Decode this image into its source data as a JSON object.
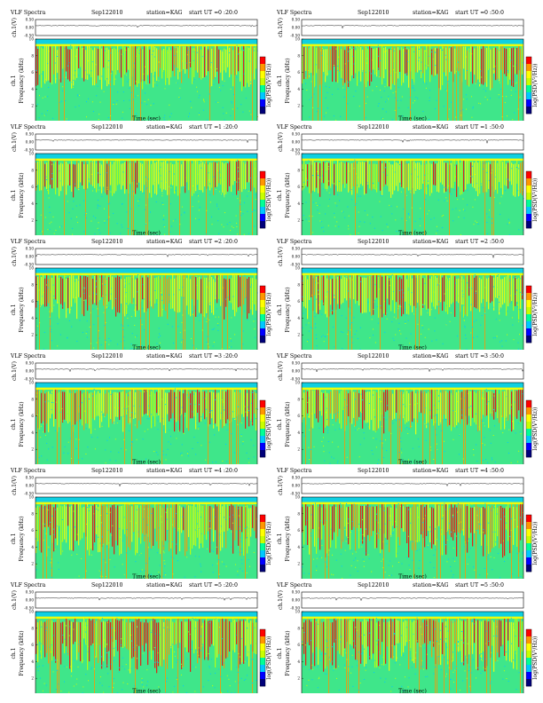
{
  "header": {
    "instrument": "VLF Spectra",
    "date": "Sep122010",
    "station": "station=KAG",
    "start_prefix": "start  UT ="
  },
  "axes": {
    "trace_label": "ch.1(V)",
    "spec_label_outer": "ch.1",
    "spec_label": "Frequency  (kHz)",
    "xlabel": "Time  (sec)",
    "colorbar_label": "log(PSD(V²/Hz))"
  },
  "colors": {
    "scale": [
      "#00007a",
      "#0000ff",
      "#00c8ff",
      "#00ff96",
      "#c8ff00",
      "#ffff00",
      "#ff9600",
      "#ff0000"
    ],
    "dominant_background": "#3fe68a"
  },
  "chart_data": [
    {
      "type": "heatmap",
      "title": "VLF Spectra",
      "start_ut": "0 :20:0",
      "xlim": [
        0,
        120
      ],
      "ylim": [
        0,
        10
      ],
      "trace_ylim": [
        -0.5,
        0.5
      ],
      "band_top_khz": 10,
      "activity": "moderate"
    },
    {
      "type": "heatmap",
      "title": "VLF Spectra",
      "start_ut": "0 :50:0",
      "xlim": [
        0,
        120
      ],
      "ylim": [
        0,
        10
      ],
      "trace_ylim": [
        -0.5,
        0.5
      ],
      "band_top_khz": 10,
      "activity": "moderate"
    },
    {
      "type": "heatmap",
      "title": "VLF Spectra",
      "start_ut": "1 :20:0",
      "xlim": [
        0,
        120
      ],
      "ylim": [
        0,
        10
      ],
      "trace_ylim": [
        -0.5,
        0.5
      ],
      "band_top_khz": 10,
      "activity": "low"
    },
    {
      "type": "heatmap",
      "title": "VLF Spectra",
      "start_ut": "1 :50:0",
      "xlim": [
        0,
        120
      ],
      "ylim": [
        0,
        10
      ],
      "trace_ylim": [
        -0.5,
        0.5
      ],
      "band_top_khz": 10,
      "activity": "low"
    },
    {
      "type": "heatmap",
      "title": "VLF Spectra",
      "start_ut": "2 :20:0",
      "xlim": [
        0,
        120
      ],
      "ylim": [
        0,
        10
      ],
      "trace_ylim": [
        -0.5,
        0.5
      ],
      "band_top_khz": 10,
      "activity": "moderate"
    },
    {
      "type": "heatmap",
      "title": "VLF Spectra",
      "start_ut": "2 :50:0",
      "xlim": [
        0,
        120
      ],
      "ylim": [
        0,
        10
      ],
      "trace_ylim": [
        -0.5,
        0.5
      ],
      "band_top_khz": 10,
      "activity": "moderate"
    },
    {
      "type": "heatmap",
      "title": "VLF Spectra",
      "start_ut": "3 :20:0",
      "xlim": [
        0,
        120
      ],
      "ylim": [
        0,
        10
      ],
      "trace_ylim": [
        -0.5,
        0.5
      ],
      "band_top_khz": 10,
      "activity": "moderate"
    },
    {
      "type": "heatmap",
      "title": "VLF Spectra",
      "start_ut": "3 :50:0",
      "xlim": [
        0,
        120
      ],
      "ylim": [
        0,
        10
      ],
      "trace_ylim": [
        -0.5,
        0.5
      ],
      "band_top_khz": 10,
      "activity": "moderate"
    },
    {
      "type": "heatmap",
      "title": "VLF Spectra",
      "start_ut": "4 :20:0",
      "xlim": [
        0,
        120
      ],
      "ylim": [
        0,
        10
      ],
      "trace_ylim": [
        -0.5,
        0.5
      ],
      "band_top_khz": 10,
      "activity": "high"
    },
    {
      "type": "heatmap",
      "title": "VLF Spectra",
      "start_ut": "4 :50:0",
      "xlim": [
        0,
        120
      ],
      "ylim": [
        0,
        10
      ],
      "trace_ylim": [
        -0.5,
        0.5
      ],
      "band_top_khz": 10,
      "activity": "high"
    },
    {
      "type": "heatmap",
      "title": "VLF Spectra",
      "start_ut": "5 :20:0",
      "xlim": [
        0,
        120
      ],
      "ylim": [
        0,
        10
      ],
      "trace_ylim": [
        -0.5,
        0.5
      ],
      "band_top_khz": 10,
      "activity": "high"
    },
    {
      "type": "heatmap",
      "title": "VLF Spectra",
      "start_ut": "5 :50:0",
      "xlim": [
        0,
        120
      ],
      "ylim": [
        0,
        10
      ],
      "trace_ylim": [
        -0.5,
        0.5
      ],
      "band_top_khz": 10,
      "activity": "high"
    }
  ]
}
